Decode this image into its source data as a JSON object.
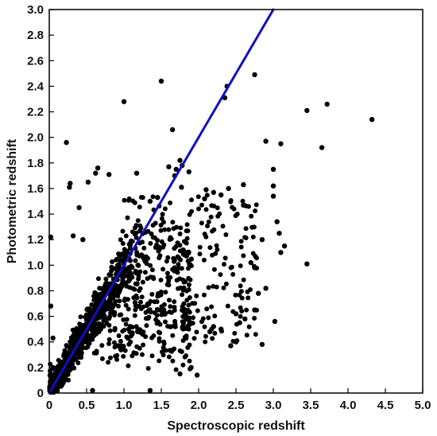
{
  "chart_data": {
    "type": "scatter",
    "title": "",
    "xlabel": "Spectroscopic redshift",
    "ylabel": "Photometric redshift",
    "xlim": [
      0,
      5.0
    ],
    "ylim": [
      0,
      3.0
    ],
    "x_ticks": [
      "0",
      "0.5",
      "1.0",
      "1.5",
      "2.0",
      "2.5",
      "3.0",
      "3.5",
      "4.0",
      "4.5",
      "5.0"
    ],
    "y_ticks": [
      "0",
      "0.2",
      "0.4",
      "0.6",
      "0.8",
      "1.0",
      "1.2",
      "1.4",
      "1.6",
      "1.8",
      "2.0",
      "2.2",
      "2.4",
      "2.6",
      "2.8",
      "3.0"
    ],
    "grid": false,
    "legend": "none",
    "colors": {
      "points": "#000000",
      "line": "#1010c0"
    },
    "reference_line": {
      "label": "",
      "x": [
        0,
        3.0
      ],
      "y": [
        0,
        3.0
      ]
    },
    "series": [
      {
        "points": [
          [
            1.5,
            2.44
          ],
          [
            2.75,
            2.49
          ],
          [
            2.38,
            2.4
          ],
          [
            2.35,
            2.31
          ],
          [
            1.0,
            2.28
          ],
          [
            3.72,
            2.26
          ],
          [
            3.45,
            2.21
          ],
          [
            4.32,
            2.14
          ],
          [
            1.65,
            2.06
          ],
          [
            0.23,
            1.96
          ],
          [
            2.9,
            1.97
          ],
          [
            3.1,
            1.95
          ],
          [
            3.65,
            1.92
          ],
          [
            1.75,
            1.82
          ],
          [
            1.78,
            1.78
          ],
          [
            1.7,
            1.75
          ],
          [
            1.6,
            1.77
          ],
          [
            3.0,
            1.75
          ],
          [
            1.87,
            1.73
          ],
          [
            0.65,
            1.76
          ],
          [
            0.62,
            1.72
          ],
          [
            0.8,
            1.71
          ],
          [
            1.17,
            1.72
          ],
          [
            1.68,
            1.7
          ],
          [
            0.28,
            1.64
          ],
          [
            0.27,
            1.61
          ],
          [
            0.52,
            1.65
          ],
          [
            2.6,
            1.63
          ],
          [
            3.0,
            1.62
          ],
          [
            2.4,
            1.6
          ],
          [
            1.77,
            1.61
          ],
          [
            3.0,
            1.54
          ],
          [
            2.2,
            1.57
          ],
          [
            2.08,
            1.52
          ],
          [
            2.3,
            1.55
          ],
          [
            2.1,
            1.59
          ],
          [
            1.45,
            1.53
          ],
          [
            1.35,
            1.5
          ],
          [
            0.4,
            1.45
          ],
          [
            2.6,
            1.47
          ],
          [
            0.02,
            1.22
          ],
          [
            0.32,
            1.23
          ],
          [
            0.45,
            1.2
          ],
          [
            3.05,
            1.34
          ],
          [
            3.08,
            1.25
          ],
          [
            3.15,
            1.15
          ],
          [
            3.1,
            1.1
          ],
          [
            3.45,
            1.01
          ],
          [
            2.85,
            1.2
          ],
          [
            2.7,
            1.02
          ],
          [
            2.75,
            0.98
          ],
          [
            2.9,
            0.82
          ],
          [
            2.8,
            0.78
          ],
          [
            2.75,
            0.65
          ],
          [
            2.5,
            0.62
          ],
          [
            2.55,
            0.55
          ],
          [
            2.62,
            0.58
          ],
          [
            3.02,
            0.56
          ],
          [
            2.85,
            0.38
          ],
          [
            2.5,
            0.4
          ],
          [
            2.43,
            0.37
          ],
          [
            2.3,
            0.5
          ],
          [
            2.2,
            0.52
          ],
          [
            2.15,
            0.48
          ],
          [
            1.75,
            0.15
          ],
          [
            1.98,
            0.14
          ],
          [
            1.9,
            0.2
          ],
          [
            0.58,
            0.02
          ],
          [
            1.35,
            0.02
          ],
          [
            0.05,
            0.2
          ],
          [
            0.05,
            0.43
          ],
          [
            0.02,
            0.68
          ]
        ]
      }
    ]
  }
}
